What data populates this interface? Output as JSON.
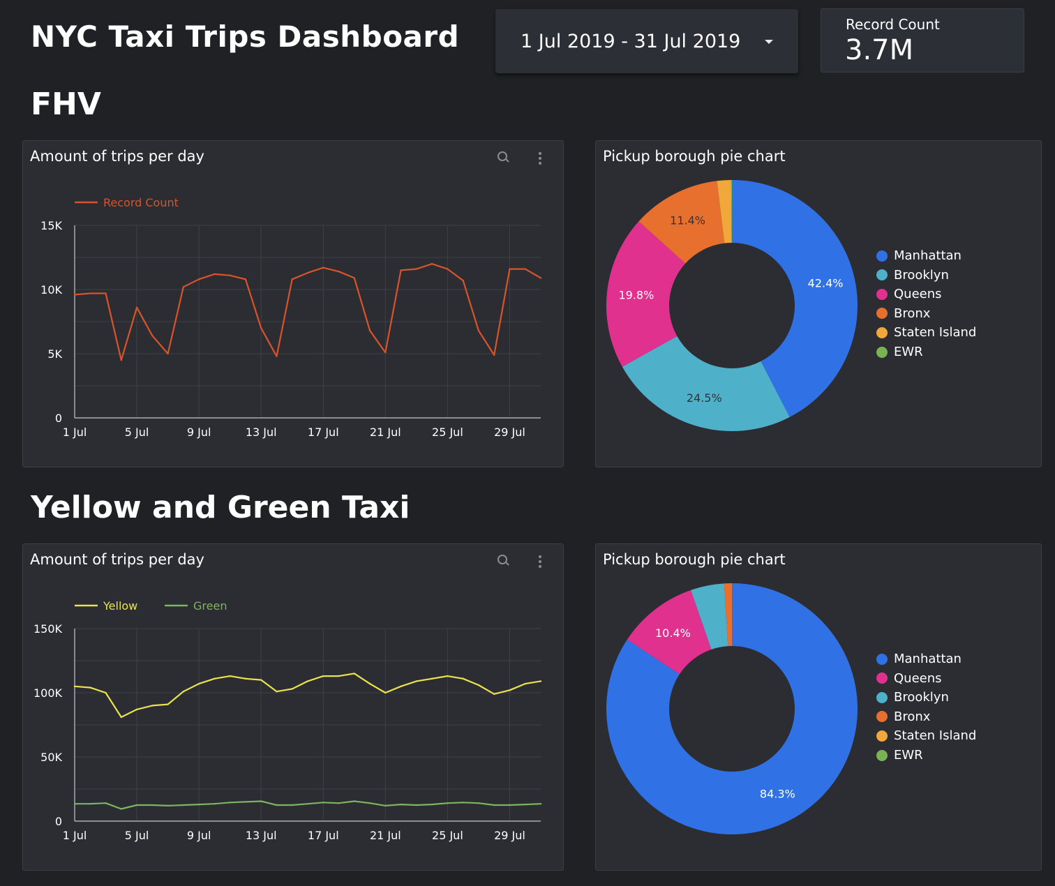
{
  "header": {
    "title": "NYC Taxi Trips Dashboard",
    "date_range": "1 Jul 2019 - 31 Jul 2019",
    "scorecard_label": "Record Count",
    "scorecard_value": "3.7M"
  },
  "sections": {
    "fhv": "FHV",
    "taxi": "Yellow and Green Taxi"
  },
  "colors": {
    "record_count": "#d9532b",
    "yellow": "#ebe34d",
    "green": "#7cb561",
    "manhattan": "#3072e6",
    "brooklyn": "#4fb1c9",
    "queens": "#e0318e",
    "bronx": "#e8702e",
    "staten_island": "#f2a73a",
    "ewr": "#7ab355"
  },
  "chart_data": [
    {
      "id": "fhv_line",
      "type": "line",
      "title": "Amount of trips per day",
      "x": [
        "1 Jul",
        "2 Jul",
        "3 Jul",
        "4 Jul",
        "5 Jul",
        "6 Jul",
        "7 Jul",
        "8 Jul",
        "9 Jul",
        "10 Jul",
        "11 Jul",
        "12 Jul",
        "13 Jul",
        "14 Jul",
        "15 Jul",
        "16 Jul",
        "17 Jul",
        "18 Jul",
        "19 Jul",
        "20 Jul",
        "21 Jul",
        "22 Jul",
        "23 Jul",
        "24 Jul",
        "25 Jul",
        "26 Jul",
        "27 Jul",
        "28 Jul",
        "29 Jul",
        "30 Jul",
        "31 Jul"
      ],
      "x_tick_labels": [
        "1 Jul",
        "5 Jul",
        "9 Jul",
        "13 Jul",
        "17 Jul",
        "21 Jul",
        "25 Jul",
        "29 Jul"
      ],
      "y_tick_labels": [
        "0",
        "5K",
        "10K",
        "15K"
      ],
      "ylim": [
        0,
        15000
      ],
      "legend_position": "top-left",
      "series": [
        {
          "name": "Record Count",
          "color": "#d9532b",
          "values": [
            9600,
            9700,
            9700,
            4500,
            8600,
            6400,
            5000,
            10200,
            10800,
            11200,
            11100,
            10800,
            7000,
            4800,
            10800,
            11300,
            11700,
            11400,
            10900,
            6800,
            5100,
            11500,
            11600,
            12000,
            11600,
            10700,
            6800,
            4900,
            11600,
            11600,
            10900
          ]
        }
      ],
      "grid": true
    },
    {
      "id": "fhv_pie",
      "type": "pie",
      "title": "Pickup borough pie chart",
      "donut": true,
      "legend_position": "right",
      "slices": [
        {
          "label": "Manhattan",
          "value": 42.4,
          "display": "42.4%",
          "color": "#3072e6"
        },
        {
          "label": "Brooklyn",
          "value": 24.5,
          "display": "24.5%",
          "color": "#4fb1c9"
        },
        {
          "label": "Queens",
          "value": 19.8,
          "display": "19.8%",
          "color": "#e0318e"
        },
        {
          "label": "Bronx",
          "value": 11.4,
          "display": "11.4%",
          "color": "#e8702e"
        },
        {
          "label": "Staten Island",
          "value": 1.8,
          "display": "",
          "color": "#f2a73a"
        },
        {
          "label": "EWR",
          "value": 0.1,
          "display": "",
          "color": "#7ab355"
        }
      ]
    },
    {
      "id": "taxi_line",
      "type": "line",
      "title": "Amount of trips per day",
      "x": [
        "1 Jul",
        "2 Jul",
        "3 Jul",
        "4 Jul",
        "5 Jul",
        "6 Jul",
        "7 Jul",
        "8 Jul",
        "9 Jul",
        "10 Jul",
        "11 Jul",
        "12 Jul",
        "13 Jul",
        "14 Jul",
        "15 Jul",
        "16 Jul",
        "17 Jul",
        "18 Jul",
        "19 Jul",
        "20 Jul",
        "21 Jul",
        "22 Jul",
        "23 Jul",
        "24 Jul",
        "25 Jul",
        "26 Jul",
        "27 Jul",
        "28 Jul",
        "29 Jul",
        "30 Jul",
        "31 Jul"
      ],
      "x_tick_labels": [
        "1 Jul",
        "5 Jul",
        "9 Jul",
        "13 Jul",
        "17 Jul",
        "21 Jul",
        "25 Jul",
        "29 Jul"
      ],
      "y_tick_labels": [
        "0",
        "50K",
        "100K",
        "150K"
      ],
      "ylim": [
        0,
        150000
      ],
      "legend_position": "top-left",
      "series": [
        {
          "name": "Yellow",
          "color": "#ebe34d",
          "values": [
            105000,
            104000,
            100000,
            81000,
            87000,
            90000,
            91000,
            101000,
            107000,
            111000,
            113000,
            111000,
            110000,
            101000,
            103000,
            109000,
            113000,
            113000,
            115000,
            107000,
            100000,
            105000,
            109000,
            111000,
            113000,
            111000,
            106000,
            99000,
            102000,
            107000,
            109000
          ]
        },
        {
          "name": "Green",
          "color": "#7cb561",
          "values": [
            13500,
            13500,
            14000,
            9500,
            12500,
            12500,
            12000,
            12500,
            13000,
            13500,
            14500,
            15000,
            15500,
            12500,
            12500,
            13500,
            14500,
            14000,
            15500,
            14000,
            12000,
            13000,
            12500,
            13000,
            14000,
            14500,
            14000,
            12500,
            12500,
            13000,
            13500
          ]
        }
      ],
      "grid": true
    },
    {
      "id": "taxi_pie",
      "type": "pie",
      "title": "Pickup borough pie chart",
      "donut": true,
      "legend_position": "right",
      "slices": [
        {
          "label": "Manhattan",
          "value": 84.3,
          "display": "84.3%",
          "color": "#3072e6"
        },
        {
          "label": "Queens",
          "value": 10.4,
          "display": "10.4%",
          "color": "#e0318e"
        },
        {
          "label": "Brooklyn",
          "value": 4.3,
          "display": "",
          "color": "#4fb1c9"
        },
        {
          "label": "Bronx",
          "value": 1.0,
          "display": "",
          "color": "#e8702e"
        },
        {
          "label": "Staten Island",
          "value": 0.0,
          "display": "",
          "color": "#f2a73a"
        },
        {
          "label": "EWR",
          "value": 0.0,
          "display": "",
          "color": "#7ab355"
        }
      ]
    }
  ]
}
